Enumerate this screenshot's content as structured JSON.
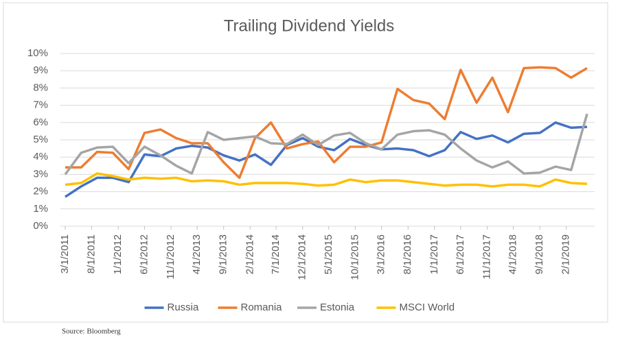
{
  "chart_data": {
    "type": "line",
    "title": "Trailing Dividend Yields",
    "source": "Source: Bloomberg",
    "x": [
      "3/1/2011",
      "6/1/2011",
      "9/1/2011",
      "12/1/2011",
      "3/1/2012",
      "6/1/2012",
      "9/1/2012",
      "12/1/2012",
      "3/1/2013",
      "6/1/2013",
      "9/1/2013",
      "12/1/2013",
      "3/1/2014",
      "6/1/2014",
      "9/1/2014",
      "12/1/2014",
      "3/1/2015",
      "6/1/2015",
      "9/1/2015",
      "12/1/2015",
      "3/1/2016",
      "6/1/2016",
      "9/1/2016",
      "12/1/2016",
      "3/1/2017",
      "6/1/2017",
      "9/1/2017",
      "12/1/2017",
      "3/1/2018",
      "6/1/2018",
      "9/1/2018",
      "12/1/2018",
      "3/1/2019",
      "6/1/2019"
    ],
    "xlim": [
      "3/1/2011",
      "6/1/2019"
    ],
    "xticks": [
      "3/1/2011",
      "8/1/2011",
      "1/1/2012",
      "6/1/2012",
      "11/1/2012",
      "4/1/2013",
      "9/1/2013",
      "2/1/2014",
      "7/1/2014",
      "12/1/2014",
      "5/1/2015",
      "10/1/2015",
      "3/1/2016",
      "8/1/2016",
      "1/1/2017",
      "6/1/2017",
      "11/1/2017",
      "4/1/2018",
      "9/1/2018",
      "2/1/2019"
    ],
    "ylim": [
      0,
      10
    ],
    "yticks": [
      {
        "value": 0,
        "label": "0%"
      },
      {
        "value": 1,
        "label": "1%"
      },
      {
        "value": 2,
        "label": "2%"
      },
      {
        "value": 3,
        "label": "3%"
      },
      {
        "value": 4,
        "label": "4%"
      },
      {
        "value": 5,
        "label": "5%"
      },
      {
        "value": 6,
        "label": "6%"
      },
      {
        "value": 7,
        "label": "7%"
      },
      {
        "value": 8,
        "label": "8%"
      },
      {
        "value": 9,
        "label": "9%"
      },
      {
        "value": 10,
        "label": "10%"
      }
    ],
    "grid": true,
    "legend": "bottom",
    "series": [
      {
        "name": "Russia",
        "color": "#4472c4",
        "values": [
          1.7,
          2.3,
          2.8,
          2.8,
          2.55,
          4.15,
          4.05,
          4.5,
          4.65,
          4.55,
          4.1,
          3.8,
          4.15,
          3.55,
          4.7,
          5.1,
          4.6,
          4.4,
          5.05,
          4.7,
          4.45,
          4.5,
          4.4,
          4.05,
          4.4,
          5.45,
          5.05,
          5.25,
          4.85,
          5.35,
          5.4,
          6.0,
          5.7,
          5.75
        ]
      },
      {
        "name": "Romania",
        "color": "#ed7d31",
        "values": [
          3.4,
          3.4,
          4.3,
          4.25,
          3.3,
          5.4,
          5.6,
          5.1,
          4.8,
          4.8,
          3.7,
          2.8,
          5.1,
          6.0,
          4.5,
          4.75,
          4.9,
          3.7,
          4.6,
          4.6,
          4.85,
          7.95,
          7.3,
          7.1,
          6.2,
          9.05,
          7.15,
          8.6,
          6.6,
          9.15,
          9.2,
          9.15,
          8.6,
          9.15
        ]
      },
      {
        "name": "Estonia",
        "color": "#a5a5a5",
        "values": [
          3.0,
          4.25,
          4.55,
          4.6,
          3.65,
          4.6,
          4.1,
          3.5,
          3.05,
          5.45,
          5.0,
          5.1,
          5.2,
          4.8,
          4.75,
          5.3,
          4.7,
          5.25,
          5.4,
          4.8,
          4.45,
          5.3,
          5.5,
          5.55,
          5.3,
          4.5,
          3.8,
          3.4,
          3.75,
          3.05,
          3.1,
          3.45,
          3.25,
          6.5
        ]
      },
      {
        "name": "MSCI World",
        "color": "#ffc000",
        "values": [
          2.4,
          2.5,
          3.05,
          2.9,
          2.7,
          2.8,
          2.75,
          2.8,
          2.6,
          2.65,
          2.6,
          2.4,
          2.5,
          2.5,
          2.5,
          2.45,
          2.35,
          2.4,
          2.7,
          2.55,
          2.65,
          2.65,
          2.55,
          2.45,
          2.35,
          2.4,
          2.4,
          2.3,
          2.4,
          2.4,
          2.3,
          2.7,
          2.5,
          2.45
        ]
      }
    ]
  }
}
